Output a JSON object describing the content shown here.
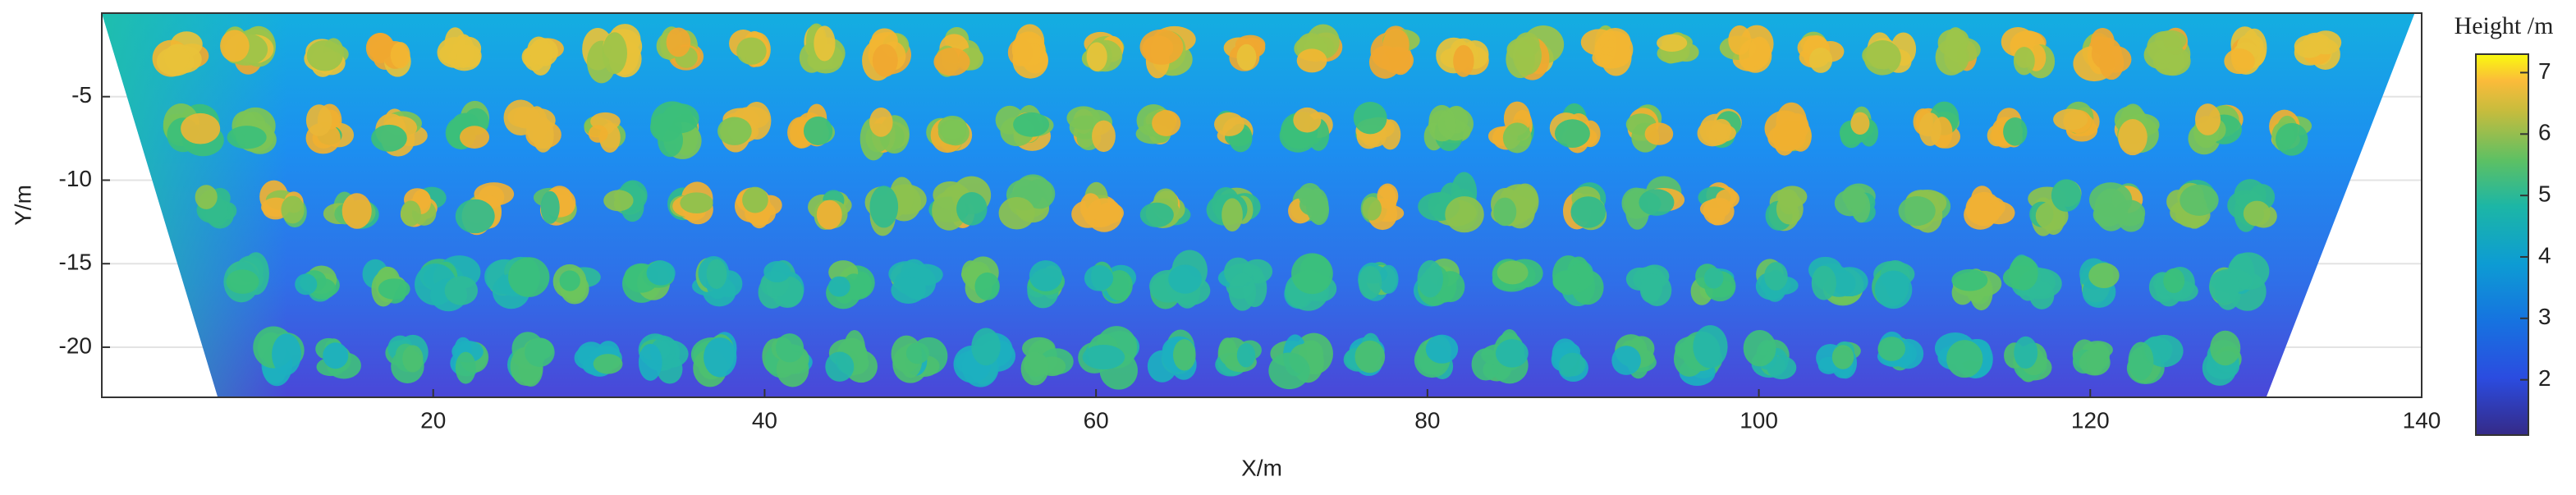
{
  "chart_data": {
    "type": "point_cloud",
    "xlabel": "X/m",
    "ylabel": "Y/m",
    "xlim": [
      0,
      140
    ],
    "ylim": [
      -23,
      0
    ],
    "xticks": [
      20,
      40,
      60,
      80,
      100,
      120,
      140
    ],
    "yticks": [
      -20,
      -15,
      -10,
      -5
    ],
    "grid": true,
    "colormap": "parula",
    "colorbar": {
      "label": "Height /m",
      "lim": [
        1.1,
        7.3
      ],
      "ticks": [
        2,
        3,
        4,
        5,
        6,
        7
      ]
    }
  }
}
